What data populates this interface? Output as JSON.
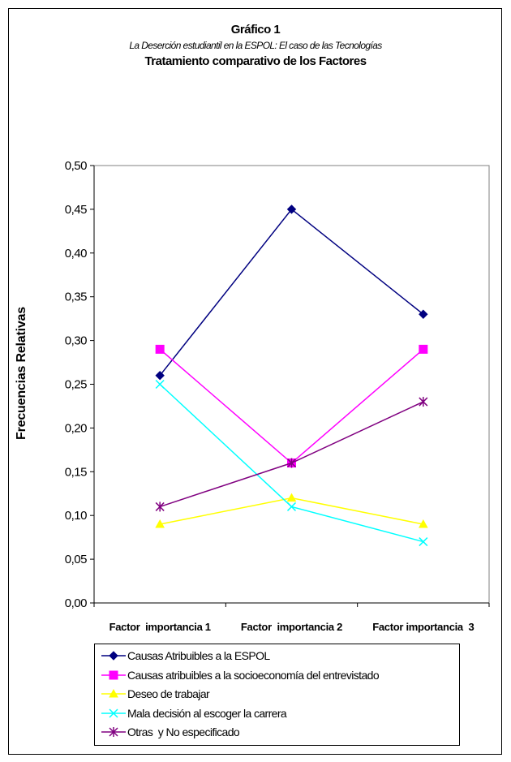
{
  "chart_data": {
    "type": "line",
    "title": "Gráfico 1",
    "subtitle": "La  Deserción estudiantil en la ESPOL: El caso  de las Tecnologías",
    "subtitle2": "Tratamiento comparativo de los Factores",
    "ylabel": "Frecuencias Relativas",
    "xlabel": "",
    "categories": [
      "Factor  importancia 1",
      "Factor  importancia 2",
      "Factor importancia  3"
    ],
    "ylim": [
      0,
      0.5
    ],
    "yticks": [
      "0,00",
      "0,05",
      "0,10",
      "0,15",
      "0,20",
      "0,25",
      "0,30",
      "0,35",
      "0,40",
      "0,45",
      "0,50"
    ],
    "grid": false,
    "legend_position": "bottom",
    "series": [
      {
        "name": "Causas Atribuibles a la ESPOL",
        "values": [
          0.26,
          0.45,
          0.33
        ],
        "color": "#000080",
        "marker": "diamond"
      },
      {
        "name": "Causas atribuibles a la socioeconomía del entrevistado",
        "values": [
          0.29,
          0.16,
          0.29
        ],
        "color": "#ff00ff",
        "marker": "square"
      },
      {
        "name": "Deseo de trabajar",
        "values": [
          0.09,
          0.12,
          0.09
        ],
        "color": "#ffff00",
        "marker": "triangle"
      },
      {
        "name": "Mala decisión al escoger la carrera",
        "values": [
          0.25,
          0.11,
          0.07
        ],
        "color": "#00ffff",
        "marker": "x"
      },
      {
        "name": "Otras  y No especificado",
        "values": [
          0.11,
          0.16,
          0.23
        ],
        "color": "#800080",
        "marker": "star"
      }
    ]
  }
}
